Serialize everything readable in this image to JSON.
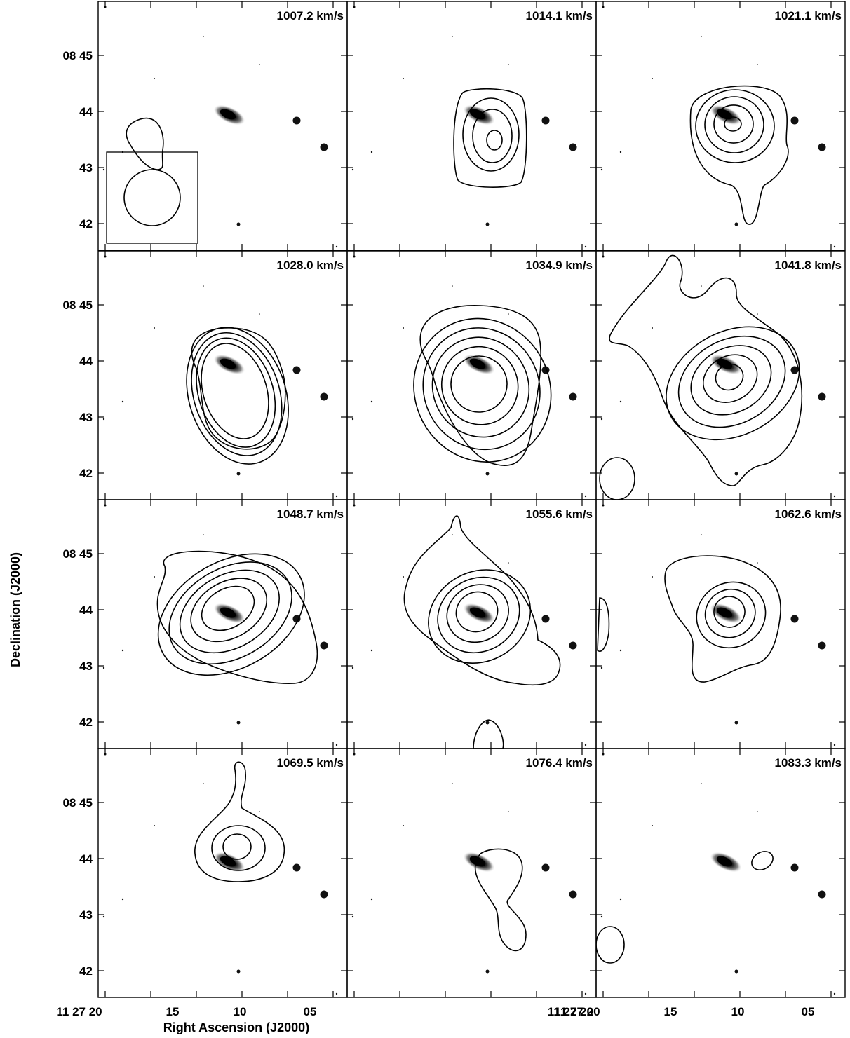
{
  "chart_data": {
    "type": "contour",
    "xlabel": "Right Ascension (J2000)",
    "ylabel": "Declination (J2000)",
    "x_ticks": [
      {
        "value": "11 27 20",
        "label": "11 27 20"
      },
      {
        "value": "11 27 15",
        "label": "15"
      },
      {
        "value": "11 27 10",
        "label": "10"
      },
      {
        "value": "11 27 05",
        "label": "05"
      }
    ],
    "y_ticks": [
      {
        "value": "08 45",
        "label": "08 45"
      },
      {
        "value": "08 44",
        "label": "44"
      },
      {
        "value": "08 43",
        "label": "43"
      },
      {
        "value": "08 42",
        "label": "42"
      }
    ],
    "panels": [
      {
        "label": "1007.2 km/s",
        "velocity": 1007.2,
        "contour_levels": 1,
        "beam_shown": true
      },
      {
        "label": "1014.1 km/s",
        "velocity": 1014.1,
        "contour_levels": 4
      },
      {
        "label": "1021.1 km/s",
        "velocity": 1021.1,
        "contour_levels": 5
      },
      {
        "label": "1028.0 km/s",
        "velocity": 1028.0,
        "contour_levels": 5
      },
      {
        "label": "1034.9 km/s",
        "velocity": 1034.9,
        "contour_levels": 6
      },
      {
        "label": "1041.8 km/s",
        "velocity": 1041.8,
        "contour_levels": 6
      },
      {
        "label": "1048.7 km/s",
        "velocity": 1048.7,
        "contour_levels": 5
      },
      {
        "label": "1055.6 km/s",
        "velocity": 1055.6,
        "contour_levels": 5
      },
      {
        "label": "1062.6 km/s",
        "velocity": 1062.6,
        "contour_levels": 4
      },
      {
        "label": "1069.5 km/s",
        "velocity": 1069.5,
        "contour_levels": 3
      },
      {
        "label": "1076.4 km/s",
        "velocity": 1076.4,
        "contour_levels": 1
      },
      {
        "label": "1083.3 km/s",
        "velocity": 1083.3,
        "contour_levels": 1
      }
    ]
  }
}
